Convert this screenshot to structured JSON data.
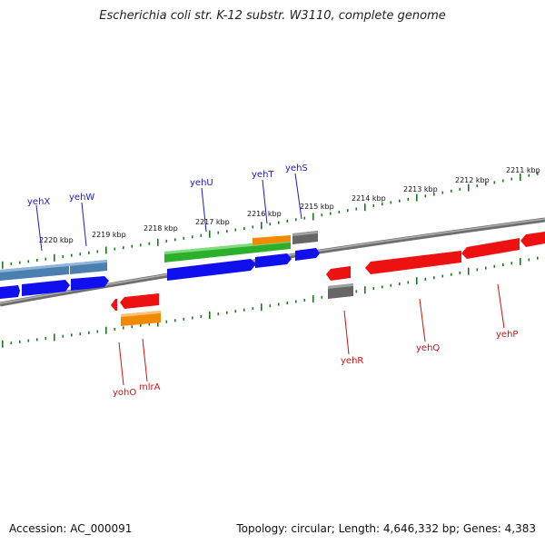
{
  "title": "Escherichia coli str. K-12 substr. W3110, complete genome",
  "footer": {
    "accession": "Accession: AC_000091",
    "summary": "Topology: circular; Length: 4,646,332 bp; Genes: 4,383"
  },
  "kbp_ticks": [
    {
      "label": "2220 kbp",
      "pos": 2220
    },
    {
      "label": "2219 kbp",
      "pos": 2219
    },
    {
      "label": "2218 kbp",
      "pos": 2218
    },
    {
      "label": "2217 kbp",
      "pos": 2217
    },
    {
      "label": "2216 kbp",
      "pos": 2216
    },
    {
      "label": "2215 kbp",
      "pos": 2215
    },
    {
      "label": "2214 kbp",
      "pos": 2214
    },
    {
      "label": "2213 kbp",
      "pos": 2213
    },
    {
      "label": "2212 kbp",
      "pos": 2212
    },
    {
      "label": "2211 kbp",
      "pos": 2211
    }
  ],
  "top_genes": [
    {
      "name": "yehX"
    },
    {
      "name": "yehW"
    },
    {
      "name": "yehU"
    },
    {
      "name": "yehT"
    },
    {
      "name": "yehS"
    }
  ],
  "bottom_genes": [
    {
      "name": "yohO"
    },
    {
      "name": "mlrA"
    },
    {
      "name": "yehR"
    },
    {
      "name": "yehQ"
    },
    {
      "name": "yehP"
    }
  ],
  "colors": {
    "blue": "#1010ee",
    "steel_blue": "#4a7fb0",
    "green": "#2cb02c",
    "orange": "#f08a00",
    "gray": "#666666",
    "red": "#ee1111",
    "tick": "#1a7a1a",
    "backbone": "#777777"
  }
}
